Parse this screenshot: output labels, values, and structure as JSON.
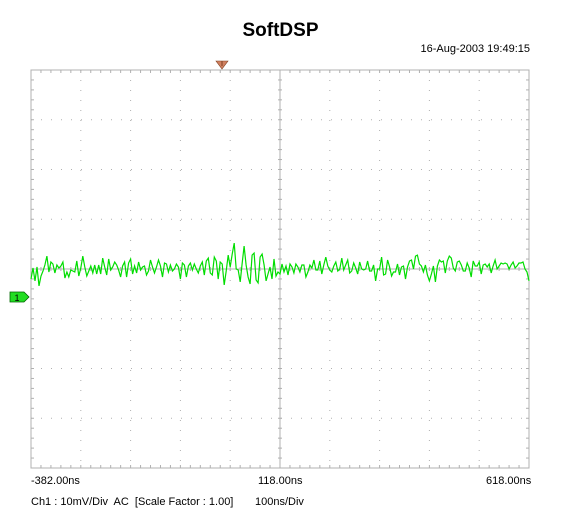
{
  "header": {
    "title": "SoftDSP",
    "timestamp": "16-Aug-2003 19:49:15"
  },
  "footer": {
    "channel_info": "Ch1 : 10mV/Div  AC  [Scale Factor : 1.00]",
    "timebase": "100ns/Div"
  },
  "colors": {
    "trace": "#00dd00",
    "grid": "#b0b0b0",
    "marker_fill": "#22dd22",
    "trigger_fill": "#d08060"
  },
  "channel_marker": {
    "label": "1"
  },
  "chart_data": {
    "type": "line",
    "title": "SoftDSP",
    "xlabel": "",
    "ylabel": "",
    "x_tick_labels": [
      "-382.00ns",
      "118.00ns",
      "618.00ns"
    ],
    "xlim": [
      -382,
      618
    ],
    "ylim": [
      -40,
      40
    ],
    "grid": true,
    "series": [
      {
        "values": [
          [
            -382,
            -2.0
          ],
          [
            -378,
            0.2
          ],
          [
            -374,
            -2.4
          ],
          [
            -370,
            0.4
          ],
          [
            -366,
            -3.4
          ],
          [
            -362,
            -1.4
          ],
          [
            -358,
            -0.4
          ],
          [
            -354,
            0.8
          ],
          [
            -350,
            2.6
          ],
          [
            -346,
            -0.6
          ],
          [
            -342,
            1.4
          ],
          [
            -338,
            1.0
          ],
          [
            -334,
            -0.8
          ],
          [
            -330,
            0.8
          ],
          [
            -326,
            0.2
          ],
          [
            -322,
            0.6
          ],
          [
            -318,
            1.4
          ],
          [
            -314,
            -1.8
          ],
          [
            -310,
            -0.6
          ],
          [
            -306,
            -1.6
          ],
          [
            -302,
            -0.2
          ],
          [
            -298,
            -0.4
          ],
          [
            -294,
            -0.6
          ],
          [
            -290,
            1.6
          ],
          [
            -286,
            -1.4
          ],
          [
            -282,
            0.2
          ],
          [
            -278,
            2.6
          ],
          [
            -274,
            0.4
          ],
          [
            -270,
            -1.4
          ],
          [
            -266,
            -0.4
          ],
          [
            -262,
            0.6
          ],
          [
            -258,
            -0.8
          ],
          [
            -254,
            0.8
          ],
          [
            -250,
            -1.0
          ],
          [
            -246,
            0.8
          ],
          [
            -242,
            -1.0
          ],
          [
            -238,
            2.2
          ],
          [
            -234,
            0.4
          ],
          [
            -230,
            -1.2
          ],
          [
            -226,
            2.0
          ],
          [
            -222,
            -0.2
          ],
          [
            -218,
            0.4
          ],
          [
            -214,
            1.4
          ],
          [
            -210,
            0.8
          ],
          [
            -206,
            -0.2
          ],
          [
            -202,
            -1.6
          ],
          [
            -198,
            0.6
          ],
          [
            -194,
            1.4
          ],
          [
            -190,
            -1.6
          ],
          [
            -186,
            1.2
          ],
          [
            -182,
            2.0
          ],
          [
            -178,
            -1.0
          ],
          [
            -174,
            0.6
          ],
          [
            -170,
            -0.8
          ],
          [
            -166,
            1.4
          ],
          [
            -162,
            -0.2
          ],
          [
            -158,
            0.4
          ],
          [
            -154,
            0.6
          ],
          [
            -150,
            -1.2
          ],
          [
            -146,
            -0.4
          ],
          [
            -142,
            1.8
          ],
          [
            -138,
            0.4
          ],
          [
            -134,
            -0.8
          ],
          [
            -130,
            0.4
          ],
          [
            -126,
            1.8
          ],
          [
            -122,
            0.6
          ],
          [
            -118,
            -1.6
          ],
          [
            -114,
            1.2
          ],
          [
            -110,
            1.0
          ],
          [
            -106,
            -0.6
          ],
          [
            -102,
            0.8
          ],
          [
            -98,
            -0.4
          ],
          [
            -94,
            0.0
          ],
          [
            -90,
            1.0
          ],
          [
            -86,
            0.4
          ],
          [
            -82,
            -2.0
          ],
          [
            -78,
            1.2
          ],
          [
            -74,
            0.8
          ],
          [
            -70,
            -1.6
          ],
          [
            -66,
            0.6
          ],
          [
            -62,
            1.2
          ],
          [
            -58,
            -0.2
          ],
          [
            -54,
            1.0
          ],
          [
            -50,
            0.0
          ],
          [
            -46,
            -0.8
          ],
          [
            -42,
            0.6
          ],
          [
            -38,
            1.4
          ],
          [
            -34,
            -1.2
          ],
          [
            -30,
            1.6
          ],
          [
            -26,
            2.2
          ],
          [
            -22,
            -0.8
          ],
          [
            -18,
            -1.2
          ],
          [
            -14,
            2.4
          ],
          [
            -10,
            1.6
          ],
          [
            -6,
            -2.0
          ],
          [
            -2,
            1.4
          ],
          [
            2,
            1.0
          ],
          [
            6,
            -3.2
          ],
          [
            10,
            -0.4
          ],
          [
            14,
            2.8
          ],
          [
            18,
            0.4
          ],
          [
            22,
            3.0
          ],
          [
            26,
            5.2
          ],
          [
            30,
            0.0
          ],
          [
            34,
            -0.2
          ],
          [
            38,
            -2.6
          ],
          [
            42,
            1.2
          ],
          [
            46,
            4.6
          ],
          [
            50,
            0.8
          ],
          [
            54,
            -1.6
          ],
          [
            58,
            -3.0
          ],
          [
            62,
            2.8
          ],
          [
            66,
            3.2
          ],
          [
            70,
            -2.2
          ],
          [
            74,
            -2.8
          ],
          [
            78,
            2.4
          ],
          [
            82,
            3.0
          ],
          [
            86,
            0.8
          ],
          [
            90,
            -2.4
          ],
          [
            94,
            -1.0
          ],
          [
            98,
            0.4
          ],
          [
            102,
            -2.0
          ],
          [
            106,
            2.0
          ],
          [
            110,
            -1.4
          ],
          [
            114,
            -0.6
          ],
          [
            118,
            -1.0
          ],
          [
            122,
            1.0
          ],
          [
            126,
            -0.6
          ],
          [
            130,
            0.6
          ],
          [
            134,
            -1.2
          ],
          [
            138,
            1.0
          ],
          [
            142,
            0.4
          ],
          [
            146,
            -0.8
          ],
          [
            150,
            1.0
          ],
          [
            154,
            0.4
          ],
          [
            158,
            -0.6
          ],
          [
            162,
            0.8
          ],
          [
            166,
            0.8
          ],
          [
            170,
            -1.6
          ],
          [
            174,
            -0.6
          ],
          [
            178,
            0.8
          ],
          [
            182,
            0.2
          ],
          [
            186,
            1.8
          ],
          [
            190,
            -0.2
          ],
          [
            194,
            -0.2
          ],
          [
            198,
            1.6
          ],
          [
            202,
            -1.0
          ],
          [
            206,
            0.8
          ],
          [
            210,
            2.4
          ],
          [
            214,
            0.6
          ],
          [
            218,
            -0.2
          ],
          [
            222,
            -0.6
          ],
          [
            226,
            0.6
          ],
          [
            230,
            1.4
          ],
          [
            234,
            -0.4
          ],
          [
            238,
            0.0
          ],
          [
            242,
            2.2
          ],
          [
            246,
            -0.2
          ],
          [
            250,
            0.8
          ],
          [
            254,
            1.8
          ],
          [
            258,
            -0.8
          ],
          [
            262,
            -0.4
          ],
          [
            266,
            1.2
          ],
          [
            270,
            0.2
          ],
          [
            274,
            -1.0
          ],
          [
            278,
            1.4
          ],
          [
            282,
            0.0
          ],
          [
            286,
            -0.2
          ],
          [
            290,
            0.0
          ],
          [
            294,
            1.6
          ],
          [
            298,
            -0.4
          ],
          [
            302,
            -0.4
          ],
          [
            306,
            0.8
          ],
          [
            310,
            -2.4
          ],
          [
            314,
            0.0
          ],
          [
            318,
            0.0
          ],
          [
            322,
            2.4
          ],
          [
            326,
            -1.2
          ],
          [
            330,
            -1.0
          ],
          [
            334,
            1.8
          ],
          [
            338,
            0.4
          ],
          [
            342,
            -1.4
          ],
          [
            346,
            -0.6
          ],
          [
            350,
            -0.6
          ],
          [
            354,
            1.0
          ],
          [
            358,
            -1.2
          ],
          [
            362,
            0.4
          ],
          [
            366,
            0.6
          ],
          [
            370,
            -2.0
          ],
          [
            374,
            0.4
          ],
          [
            378,
            1.6
          ],
          [
            382,
            1.8
          ],
          [
            386,
            0.0
          ],
          [
            390,
            2.6
          ],
          [
            394,
            2.8
          ],
          [
            398,
            1.0
          ],
          [
            402,
            0.6
          ],
          [
            406,
            -0.6
          ],
          [
            410,
            0.8
          ],
          [
            414,
            -1.2
          ],
          [
            418,
            -2.4
          ],
          [
            422,
            -1.0
          ],
          [
            426,
            0.6
          ],
          [
            430,
            -2.6
          ],
          [
            434,
            0.6
          ],
          [
            438,
            1.8
          ],
          [
            442,
            1.4
          ],
          [
            446,
            1.6
          ],
          [
            450,
            -0.8
          ],
          [
            454,
            1.6
          ],
          [
            458,
            2.6
          ],
          [
            462,
            2.2
          ],
          [
            466,
            0.2
          ],
          [
            470,
            -0.4
          ],
          [
            474,
            1.4
          ],
          [
            478,
            1.6
          ],
          [
            482,
            0.8
          ],
          [
            486,
            -0.4
          ],
          [
            490,
            -0.4
          ],
          [
            494,
            1.2
          ],
          [
            498,
            0.2
          ],
          [
            502,
            -1.6
          ],
          [
            506,
            1.6
          ],
          [
            510,
            0.6
          ],
          [
            514,
            0.6
          ],
          [
            518,
            1.4
          ],
          [
            522,
            -1.0
          ],
          [
            526,
            0.8
          ],
          [
            530,
            1.0
          ],
          [
            534,
            0.4
          ],
          [
            538,
            1.0
          ],
          [
            542,
            -0.8
          ],
          [
            546,
            0.6
          ],
          [
            550,
            1.8
          ],
          [
            554,
            0.0
          ],
          [
            558,
            0.6
          ],
          [
            562,
            1.2
          ],
          [
            566,
            1.0
          ],
          [
            570,
            1.2
          ],
          [
            574,
            1.0
          ],
          [
            578,
            0.0
          ],
          [
            582,
            0.8
          ],
          [
            586,
            1.4
          ],
          [
            590,
            0.2
          ],
          [
            594,
            0.6
          ],
          [
            598,
            1.2
          ],
          [
            602,
            1.2
          ],
          [
            606,
            1.4
          ],
          [
            610,
            0.0
          ],
          [
            614,
            -0.6
          ],
          [
            618,
            -2.4
          ]
        ]
      }
    ]
  }
}
